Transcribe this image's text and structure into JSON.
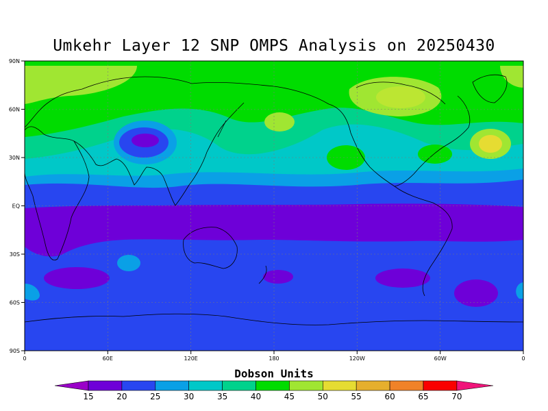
{
  "title": "Umkehr Layer 12 SNP OMPS Analysis on 20250430",
  "map": {
    "projection": "cylindrical equidistant",
    "lon_range": [
      0,
      360
    ],
    "lat_range": [
      -90,
      90
    ],
    "grid": "dashed",
    "lat_ticks": [
      "90N",
      "60N",
      "30N",
      "EQ",
      "30S",
      "60S",
      "90S"
    ],
    "lon_ticks": [
      "0",
      "60E",
      "120E",
      "180",
      "120W",
      "60W",
      "0"
    ],
    "background_level": 25,
    "fields": [
      {
        "name": "polar-n",
        "level": 45
      },
      {
        "name": "tropics",
        "level": 15
      },
      {
        "name": "southern-mid",
        "level": 20
      }
    ]
  },
  "colorbar": {
    "label": "Dobson Units",
    "ticks": [
      "15",
      "20",
      "25",
      "30",
      "35",
      "40",
      "45",
      "50",
      "55",
      "60",
      "65",
      "70"
    ],
    "colors": [
      "#9a00c8",
      "#6e00d8",
      "#2846f0",
      "#0aa0e6",
      "#00c8c8",
      "#00d28c",
      "#00dc00",
      "#a0e632",
      "#e6dc32",
      "#e6af2d",
      "#f08228",
      "#fa0000",
      "#f0147a"
    ]
  }
}
